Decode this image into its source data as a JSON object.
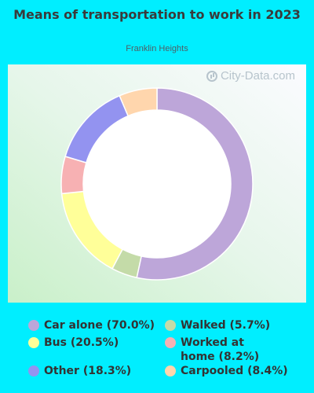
{
  "chart_data": {
    "type": "pie",
    "title": "Means of transportation to work in 2023",
    "subtitle": "Franklin Heights",
    "watermark": "City-Data.com",
    "donut": true,
    "slices": [
      {
        "label": "Car alone (70.0%)",
        "value": 70.0,
        "color": "#bda6d9"
      },
      {
        "label": "Walked (5.7%)",
        "value": 5.7,
        "color": "#c4dba8"
      },
      {
        "label": "Bus (20.5%)",
        "value": 20.5,
        "color": "#ffff99"
      },
      {
        "label": "Worked at home (8.2%)",
        "value": 8.2,
        "color": "#f7b1b3"
      },
      {
        "label": "Other (18.3%)",
        "value": 18.3,
        "color": "#9393f0"
      },
      {
        "label": "Carpooled (8.4%)",
        "value": 8.4,
        "color": "#ffd6ad"
      }
    ],
    "legend_position": "bottom"
  }
}
